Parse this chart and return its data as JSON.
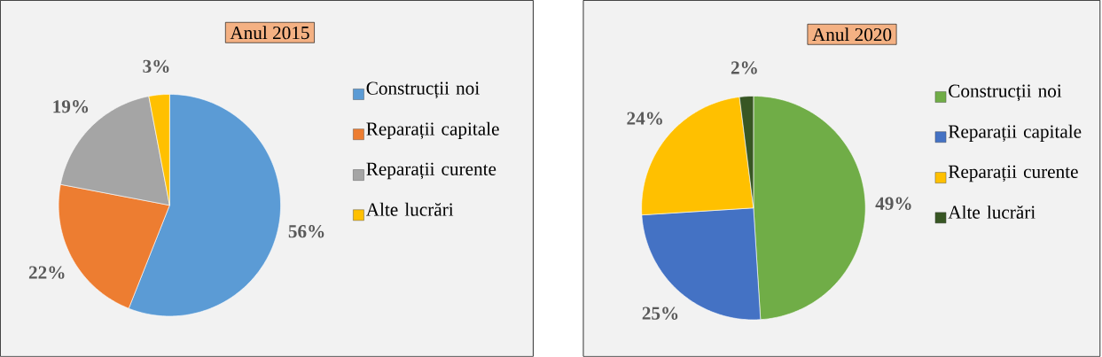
{
  "chart_data": [
    {
      "type": "pie",
      "title": "Anul 2015",
      "categories": [
        "Construcții noi",
        "Reparații capitale",
        "Reparații curente",
        "Alte lucrări"
      ],
      "values": [
        56,
        22,
        19,
        3
      ],
      "value_labels": [
        "56%",
        "22%",
        "19%",
        "3%"
      ],
      "colors": [
        "#5b9bd5",
        "#ed7d31",
        "#a5a5a5",
        "#ffc000"
      ],
      "legend": "right"
    },
    {
      "type": "pie",
      "title": "Anul 2020",
      "categories": [
        "Construcții noi",
        "Reparații capitale",
        "Reparații curente",
        "Alte lucrări"
      ],
      "values": [
        49,
        25,
        24,
        2
      ],
      "value_labels": [
        "49%",
        "25%",
        "24%",
        "2%"
      ],
      "colors": [
        "#70ad47",
        "#4472c4",
        "#ffc000",
        "#375623"
      ],
      "legend": "right"
    }
  ]
}
